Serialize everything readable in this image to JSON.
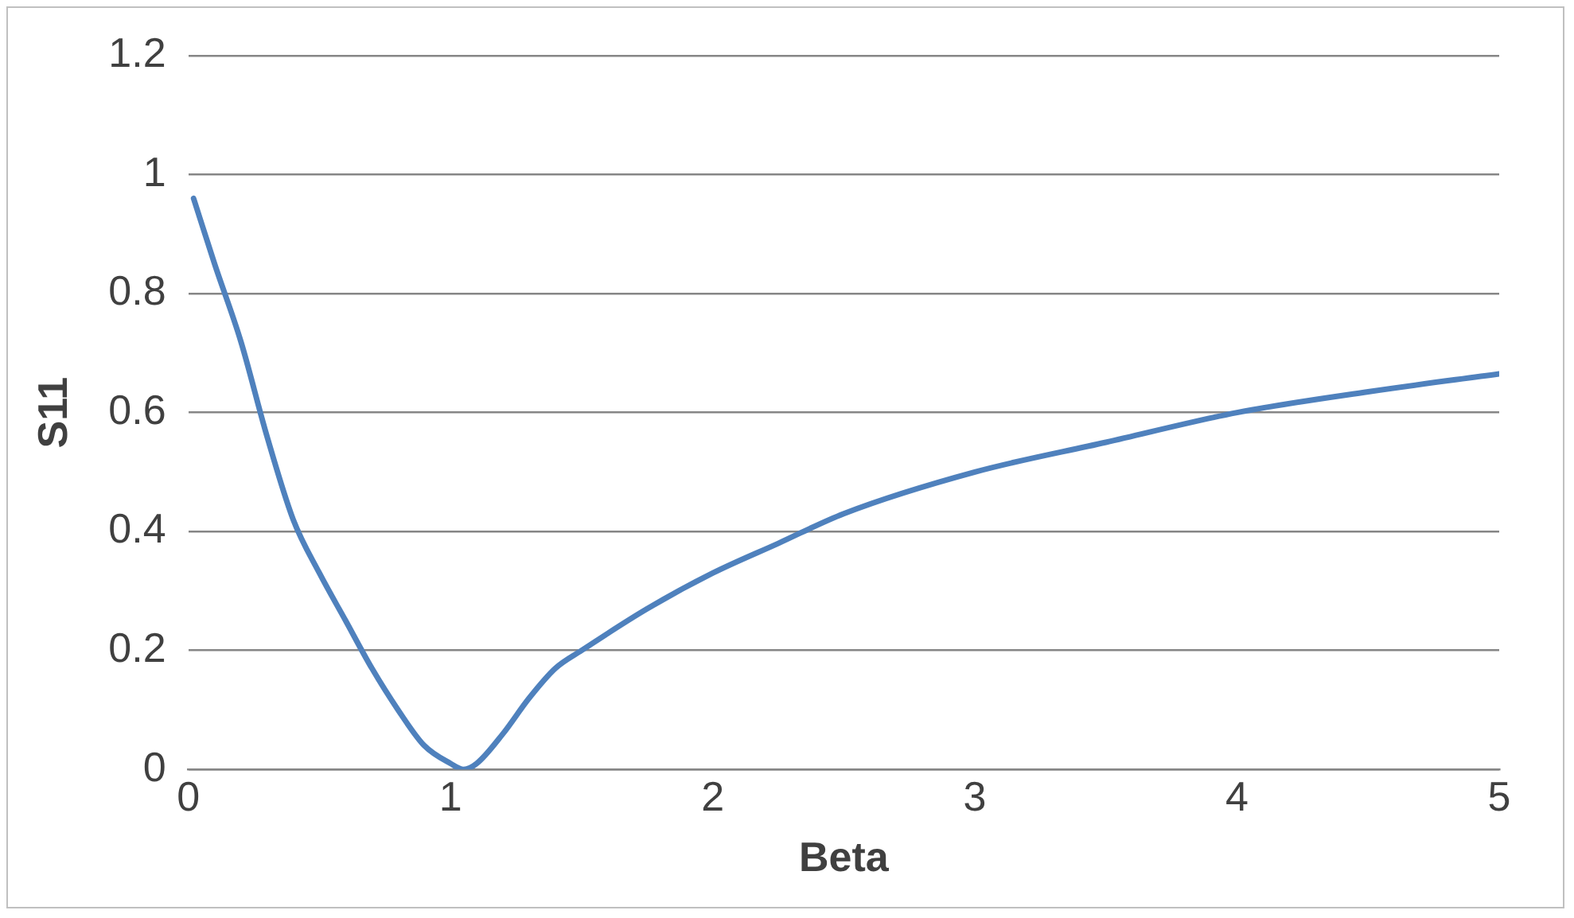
{
  "chart_data": {
    "type": "line",
    "xlabel": "Beta",
    "ylabel": "S11",
    "x": [
      0.02,
      0.1,
      0.2,
      0.3,
      0.4,
      0.5,
      0.6,
      0.7,
      0.8,
      0.9,
      1.0,
      1.05,
      1.1,
      1.2,
      1.3,
      1.4,
      1.5,
      1.75,
      2,
      2.25,
      2.5,
      3,
      3.5,
      4,
      4.5,
      5
    ],
    "series": [
      {
        "color": "#4f81bd",
        "values": [
          0.96,
          0.85,
          0.72,
          0.56,
          0.42,
          0.33,
          0.25,
          0.17,
          0.1,
          0.04,
          0.01,
          0.0,
          0.01,
          0.06,
          0.12,
          0.17,
          0.2,
          0.27,
          0.33,
          0.38,
          0.43,
          0.5,
          0.55,
          0.6,
          0.635,
          0.665
        ]
      }
    ],
    "xlim": [
      0,
      5
    ],
    "xticks": [
      0,
      1,
      2,
      3,
      4,
      5
    ],
    "ylim": [
      0,
      1.2
    ],
    "yticks": [
      0,
      0.2,
      0.4,
      0.6,
      0.8,
      1,
      1.2
    ],
    "grid": "y",
    "legend": false,
    "marker": "none",
    "line_style": "solid"
  }
}
